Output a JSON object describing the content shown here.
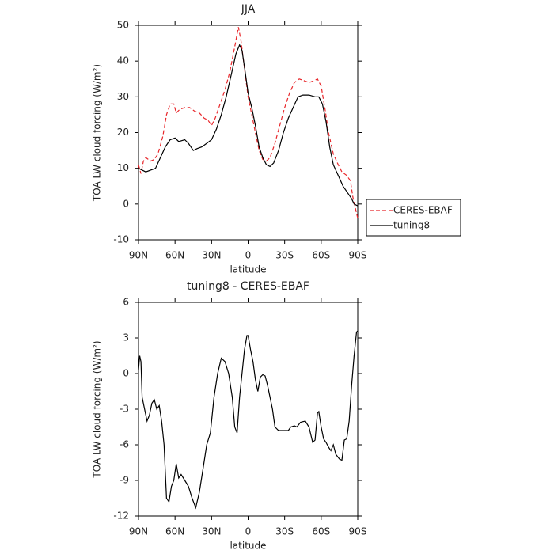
{
  "chart_data": [
    {
      "type": "line",
      "title": "JJA",
      "xlabel": "latitude",
      "ylabel": "TOA LW cloud forcing (W/m²)",
      "xlim": [
        90,
        -90
      ],
      "xticks": [
        {
          "value": 90,
          "label": "90N"
        },
        {
          "value": 60,
          "label": "60N"
        },
        {
          "value": 30,
          "label": "30N"
        },
        0,
        {
          "value": -30,
          "label": "30S"
        },
        {
          "value": -60,
          "label": "60S"
        },
        {
          "value": -90,
          "label": "90S"
        }
      ],
      "ylim": [
        -10,
        50
      ],
      "yticks": [
        -10,
        0,
        10,
        20,
        30,
        40,
        50
      ],
      "legend": "right",
      "series": [
        {
          "name": "CERES-EBAF",
          "color": "#e8262a",
          "line_style": "dashed",
          "x": [
            90,
            88,
            86,
            84,
            82,
            80,
            77,
            74,
            70,
            67,
            64,
            61,
            59,
            56,
            52,
            48,
            44,
            40,
            36,
            33,
            30,
            27,
            23,
            19,
            15,
            11,
            8,
            6,
            3,
            0,
            -3,
            -6,
            -9,
            -12,
            -15,
            -18,
            -22,
            -26,
            -30,
            -34,
            -38,
            -42,
            -46,
            -50,
            -54,
            -57,
            -60,
            -63,
            -66,
            -70,
            -74,
            -77,
            -81,
            -84,
            -86,
            -88,
            -90
          ],
          "values": [
            11,
            8.5,
            12,
            13,
            12.5,
            12,
            12.5,
            14,
            19,
            25,
            28,
            28,
            25.5,
            26.5,
            27,
            27,
            26,
            25.5,
            24,
            23.5,
            22,
            24,
            28,
            32,
            37,
            44,
            49.5,
            46,
            38,
            30,
            25,
            20,
            15,
            12.5,
            12,
            13,
            17,
            22,
            27,
            31,
            34,
            35,
            34.5,
            34,
            34.5,
            35,
            33,
            27,
            20,
            14,
            11,
            9,
            8,
            6.5,
            2,
            -1,
            -4
          ]
        },
        {
          "name": "tuning8",
          "color": "#000000",
          "line_style": "solid",
          "x": [
            90,
            87,
            84,
            80,
            76,
            72,
            68,
            64,
            60,
            57,
            52,
            49,
            45,
            42,
            38,
            34,
            30,
            26,
            22,
            18,
            14,
            10,
            7,
            5,
            2,
            0,
            -3,
            -6,
            -9,
            -12,
            -15,
            -18,
            -21,
            -25,
            -29,
            -33,
            -37,
            -41,
            -45,
            -50,
            -55,
            -58,
            -61,
            -64,
            -67,
            -70,
            -74,
            -78,
            -82,
            -85,
            -87,
            -90
          ],
          "values": [
            10,
            9.5,
            9,
            9.5,
            10,
            13,
            16,
            18,
            18.5,
            17.5,
            18,
            17,
            15,
            15.5,
            16,
            17,
            18,
            21,
            25,
            30,
            36,
            42,
            44.5,
            43,
            36,
            31,
            27,
            22,
            16,
            13,
            11,
            10.5,
            11.5,
            15,
            20,
            24,
            27,
            30,
            30.5,
            30.5,
            30,
            30,
            28,
            23,
            16,
            11,
            8,
            5,
            3,
            1.5,
            0,
            -0.5
          ]
        }
      ]
    },
    {
      "type": "line",
      "title": "tuning8 - CERES-EBAF",
      "xlabel": "latitude",
      "ylabel": "TOA LW cloud forcing (W/m²)",
      "xlim": [
        90,
        -90
      ],
      "xticks": [
        {
          "value": 90,
          "label": "90N"
        },
        {
          "value": 60,
          "label": "60N"
        },
        {
          "value": 30,
          "label": "30N"
        },
        0,
        {
          "value": -30,
          "label": "30S"
        },
        {
          "value": -60,
          "label": "60S"
        },
        {
          "value": -90,
          "label": "90S"
        }
      ],
      "ylim": [
        -12,
        6
      ],
      "yticks": [
        -12,
        -9,
        -6,
        -3,
        0,
        3,
        6
      ],
      "series": [
        {
          "color": "#000000",
          "line_style": "solid",
          "x": [
            90,
            89,
            88,
            87,
            85,
            83,
            81,
            79,
            77,
            75,
            73,
            71,
            69,
            67,
            65,
            63,
            61,
            59,
            57,
            55,
            52,
            49,
            46,
            43,
            40,
            37,
            34,
            31,
            28,
            25,
            22,
            19,
            16,
            13,
            11,
            9,
            7,
            5,
            3,
            1,
            0,
            -2,
            -4,
            -6,
            -8,
            -10,
            -12,
            -14,
            -16,
            -18,
            -20,
            -22,
            -25,
            -30,
            -33,
            -35,
            -38,
            -40,
            -43,
            -47,
            -50,
            -53,
            -55,
            -57,
            -58,
            -60,
            -62,
            -64,
            -66,
            -68,
            -70,
            -72,
            -75,
            -77,
            -79,
            -81,
            -83,
            -85,
            -87,
            -89,
            -90
          ],
          "values": [
            0.3,
            1.5,
            1,
            -2,
            -3,
            -4,
            -3.5,
            -2.5,
            -2.2,
            -3,
            -2.7,
            -4,
            -6,
            -10.5,
            -10.8,
            -9.5,
            -9,
            -7.6,
            -8.8,
            -8.5,
            -9,
            -9.5,
            -10.5,
            -11.3,
            -10,
            -8,
            -6,
            -5,
            -2,
            0,
            1.3,
            1,
            0,
            -2,
            -4.5,
            -5,
            -2,
            0,
            2,
            3.2,
            3.2,
            2,
            1,
            -0.5,
            -1.5,
            -0.3,
            -0.1,
            -0.2,
            -1,
            -2,
            -3,
            -4.5,
            -4.8,
            -4.8,
            -4.8,
            -4.5,
            -4.4,
            -4.5,
            -4.1,
            -4,
            -4.5,
            -5.8,
            -5.6,
            -3.3,
            -3.2,
            -4.5,
            -5.5,
            -5.8,
            -6.2,
            -6.5,
            -6,
            -6.8,
            -7.2,
            -7.3,
            -5.6,
            -5.5,
            -4,
            -1,
            1.5,
            3.5,
            3.6
          ]
        }
      ]
    }
  ]
}
